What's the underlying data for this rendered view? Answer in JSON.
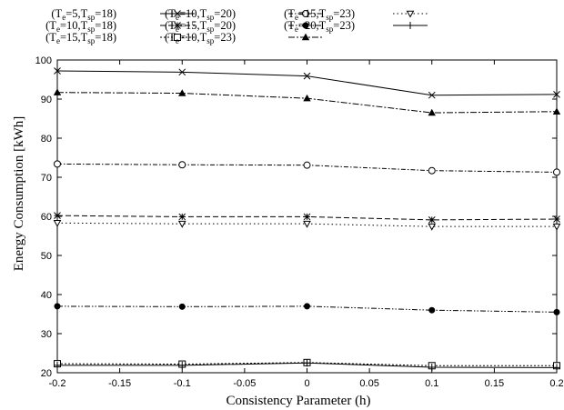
{
  "chart_data": {
    "type": "line",
    "xlabel": "Consistency Parameter (h)",
    "ylabel": "Energy Consumption [kWh]",
    "xlim": [
      -0.2,
      0.2
    ],
    "ylim": [
      20,
      100
    ],
    "x_ticks": [
      -0.2,
      -0.15,
      -0.1,
      -0.05,
      0,
      0.05,
      0.1,
      0.15,
      0.2
    ],
    "x_tick_labels": [
      "-0.2",
      "-0.15",
      "-0.1",
      "-0.05",
      "0",
      "0.05",
      "0.1",
      "0.15",
      "0.2"
    ],
    "y_ticks": [
      20,
      30,
      40,
      50,
      60,
      70,
      80,
      90,
      100
    ],
    "y_tick_labels": [
      "20",
      "30",
      "40",
      "50",
      "60",
      "70",
      "80",
      "90",
      "100"
    ],
    "grid": false,
    "legend_position": "top",
    "x": [
      -0.2,
      -0.1,
      0,
      0.1,
      0.2
    ],
    "series": [
      {
        "te": "5",
        "tsp": "18",
        "marker": "x",
        "dash": "solid",
        "values": [
          97.2,
          96.9,
          95.9,
          91.0,
          91.2
        ]
      },
      {
        "te": "10",
        "tsp": "18",
        "marker": "star",
        "dash": "dashed",
        "values": [
          60.2,
          59.9,
          59.9,
          59.1,
          59.3
        ]
      },
      {
        "te": "15",
        "tsp": "18",
        "marker": "square",
        "dash": "dotted",
        "values": [
          22.3,
          22.2,
          22.6,
          21.8,
          21.8
        ]
      },
      {
        "te": "10",
        "tsp": "20",
        "marker": "circle-open",
        "dash": "dashdot",
        "values": [
          73.4,
          73.2,
          73.1,
          71.7,
          71.3
        ]
      },
      {
        "te": "15",
        "tsp": "20",
        "marker": "circle-filled",
        "dash": "dashdotdot",
        "values": [
          37.0,
          36.9,
          37.0,
          36.0,
          35.5
        ]
      },
      {
        "te": "10",
        "tsp": "23",
        "marker": "triangle-up-filled",
        "dash": "dashdot2",
        "values": [
          91.7,
          91.5,
          90.2,
          86.5,
          86.8
        ]
      },
      {
        "te": "15",
        "tsp": "23",
        "marker": "triangle-down",
        "dash": "dotted2",
        "values": [
          58.3,
          58.1,
          58.1,
          57.4,
          57.4
        ]
      },
      {
        "te": "20",
        "tsp": "23",
        "marker": "plus",
        "dash": "solid",
        "values": [
          21.9,
          21.9,
          22.5,
          21.4,
          21.3
        ]
      }
    ]
  }
}
